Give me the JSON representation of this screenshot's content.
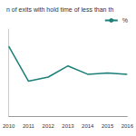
{
  "chart_data": {
    "type": "line",
    "title": "n of exits with hold time of less than th",
    "categories": [
      "2010",
      "2011",
      "2012",
      "2013",
      "2014",
      "2015",
      "2016"
    ],
    "series": [
      {
        "name": "%",
        "color": "#1b7f79",
        "values": [
          30,
          20,
          21.2,
          24.4,
          22,
          22.4,
          22
        ]
      }
    ],
    "ylim": [
      10,
      35
    ],
    "yticks": [],
    "grid": false,
    "legend": "upper right",
    "tick_labels": "x",
    "marker": "none"
  }
}
